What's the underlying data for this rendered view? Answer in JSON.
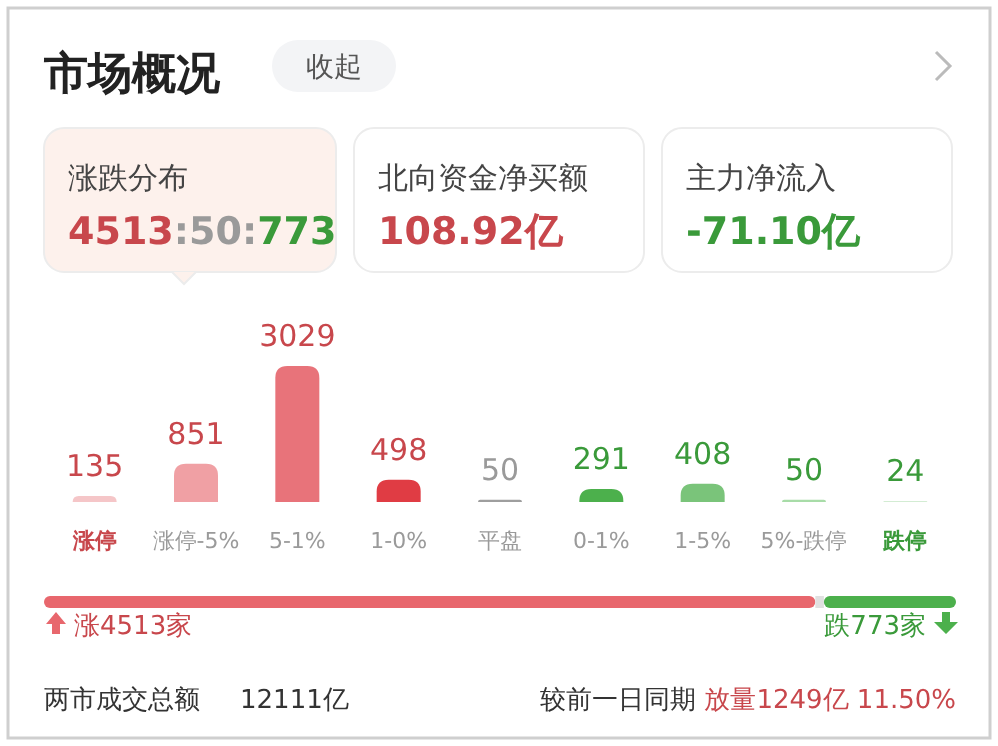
{
  "chart_data": [
    {
      "type": "other",
      "title": "市场概况",
      "annotations": [
        "收起",
        "涨跌分布",
        "4513:50:773",
        "北向资金净买额",
        "108.92亿",
        "主力净流入",
        "-71.10亿"
      ]
    },
    {
      "type": "bar",
      "categories": [
        "涨停",
        "涨停-5%",
        "5-1%",
        "1-0%",
        "平盘",
        "0-1%",
        "1-5%",
        "5%-跌停",
        "跌停"
      ],
      "values": [
        135,
        851,
        3029,
        498,
        50,
        291,
        408,
        50,
        24
      ],
      "colors": [
        "#f5c6c8",
        "#f0a0a4",
        "#e8737a",
        "#e03c44",
        "#9e9e9e",
        "#4cb04c",
        "#7ac47a",
        "#a8dca8",
        "#d3ecd3"
      ],
      "data_labels": true
    },
    {
      "type": "bar",
      "orientation": "horizontal",
      "stacked": true,
      "categories": [
        null
      ],
      "series": [
        {
          "color": "#e8676d",
          "values": [
            4513
          ],
          "value_labels": [
            "涨4513家"
          ]
        },
        {
          "color": "#e0e0e0",
          "values": [
            50
          ],
          "value_labels": [
            null
          ]
        },
        {
          "color": "#4cb04c",
          "values": [
            773
          ],
          "value_labels": [
            "跌773家"
          ]
        }
      ],
      "annotations": [
        "两市成交总额",
        "12111亿",
        "较前一日同期",
        "放量1249亿",
        "11.50%"
      ]
    }
  ]
}
